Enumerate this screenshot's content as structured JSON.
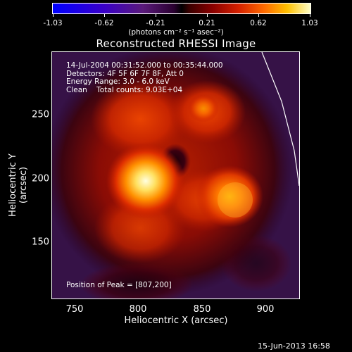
{
  "colorbar": {
    "ticks": [
      "-1.03",
      "-0.62",
      "-0.21",
      "0.21",
      "0.62",
      "1.03"
    ],
    "units": "(photons cm⁻² s⁻¹ asec⁻²)",
    "colors": [
      "#0000ff",
      "#000000",
      "#ff6a00",
      "#ffffc8"
    ]
  },
  "title": "Reconstructed RHESSI Image",
  "info": {
    "time": "14-Jul-2004 00:31:52.000 to 00:35:44.000",
    "detectors": "Detectors: 4F 5F 6F 7F 8F, Att 0",
    "energy": "Energy Range: 3.0 - 6.0 keV",
    "clean": "Clean    Total counts: 9.03E+04"
  },
  "peak": "Position of Peak = [807,200]",
  "axes": {
    "xlabel": "Heliocentric X (arcsec)",
    "ylabel": "Heliocentric Y (arcsec)",
    "xticks": [
      "750",
      "800",
      "850",
      "900"
    ],
    "yticks": [
      "250",
      "200",
      "150"
    ]
  },
  "timestamp": "15-Jun-2013 16:58"
}
